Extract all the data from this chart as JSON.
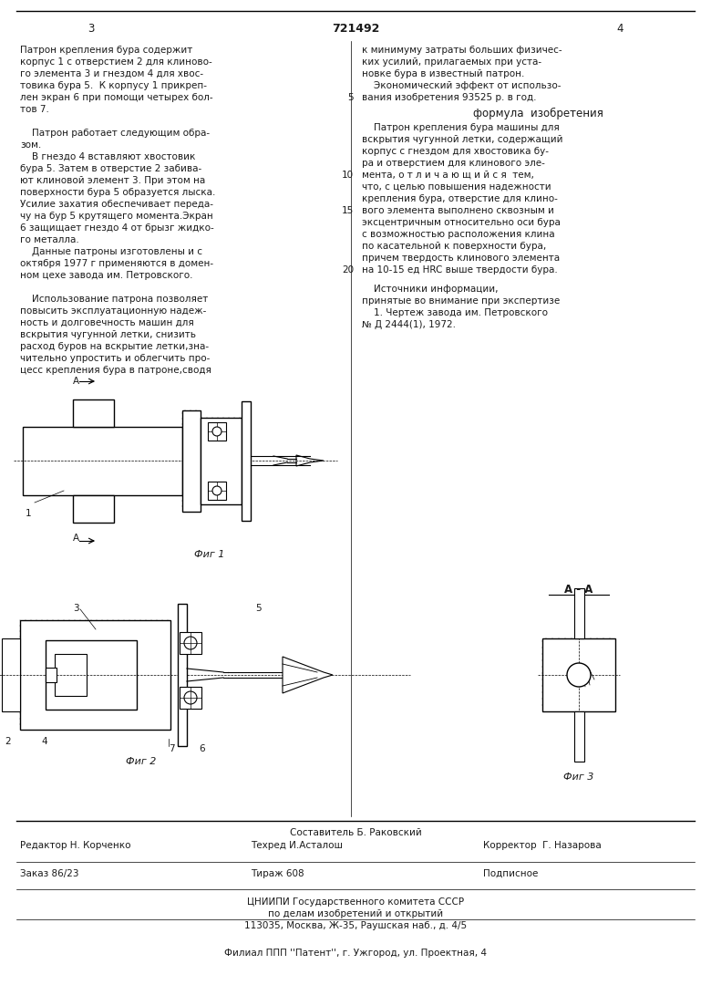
{
  "page_width": 7.8,
  "page_height": 11.03,
  "bg_color": "#ffffff",
  "text_color": "#1a1a1a",
  "col_left_lines": [
    "Патрон крепления бура содержит",
    "корпус 1 с отверстием 2 для клиново-",
    "го элемента 3 и гнездом 4 для хвос-",
    "товика бура 5.  К корпусу 1 прикреп-",
    "лен экран 6 при помощи четырех бол-",
    "тов 7.",
    "",
    "    Патрон работает следующим обра-",
    "зом.",
    "    В гнездо 4 вставляют хвостовик",
    "бура 5. Затем в отверстие 2 забива-",
    "ют клиновой элемент 3. При этом на",
    "поверхности бура 5 образуется лыска.",
    "Усилие захатия обеспечивает переда-",
    "чу на бур 5 крутящего момента.Экран",
    "6 защищает гнездо 4 от брызг жидко-",
    "го металла.",
    "    Данные патроны изготовлены и с",
    "октября 1977 г применяются в домен-",
    "ном цехе завода им. Петровского.",
    "",
    "    Использование патрона позволяет",
    "повысить эксплуатационную надеж-",
    "ность и долговечность машин для",
    "вскрытия чугунной летки, снизить",
    "расход буров на вскрытие летки,зна-",
    "чительно упростить и облегчить про-",
    "цесс крепления бура в патроне,сводя"
  ],
  "col_right_lines_top": [
    "к минимуму затраты больших физичес-",
    "ких усилий, прилагаемых при уста-",
    "новке бура в известный патрон.",
    "    Экономический эффект от использо-",
    "вания изобретения 93525 р. в год."
  ],
  "formula_header": "формула  изобретения",
  "col_right_formula": [
    "    Патрон крепления бура машины для",
    "вскрытия чугунной летки, содержащий",
    "корпус с гнездом для хвостовика бу-",
    "ра и отверстием для клинового эле-",
    "мента, о т л и ч а ю щ и й с я  тем,",
    "что, с целью повышения надежности",
    "крепления бура, отверстие для клино-",
    "вого элемента выполнено сквозным и",
    "эксцентричным относительно оси бура",
    "с возможностью расположения клина",
    "по касательной к поверхности бура,",
    "причем твердость клинового элемента",
    "на 10-15 ед HRC выше твердости бура."
  ],
  "sources_header": "    Источники информации,",
  "sources_lines": [
    "принятые во внимание при экспертизе",
    "    1. Чертеж завода им. Петровского",
    "№ Д 2444(1), 1972."
  ],
  "line_numbers": [
    {
      "n": "5",
      "line_idx": 5
    },
    {
      "n": "10",
      "line_idx": 9
    },
    {
      "n": "15",
      "line_idx": 13
    },
    {
      "n": "20",
      "line_idx": 18
    }
  ],
  "footer": {
    "sestavitel": "Составитель Б. Раковский",
    "redaktor_label": "Редактор Н. Корченко",
    "tehred_label": "Техред И.Асталош",
    "korrektor_label": "Корректор  Г. Назарова",
    "zakaz_label": "Заказ 86/23",
    "tirazh_label": "Тираж 608",
    "podpisnoe_label": "Подписное",
    "cniip1": "ЦНИИПИ Государственного комитета СССР",
    "cniip2": "по делам изобретений и открытий",
    "cniip3": "113035, Москва, Ж-35, Раушская наб., д. 4/5",
    "filial": "Филиал ППП ''Патент'', г. Ужгород, ул. Проектная, 4"
  }
}
